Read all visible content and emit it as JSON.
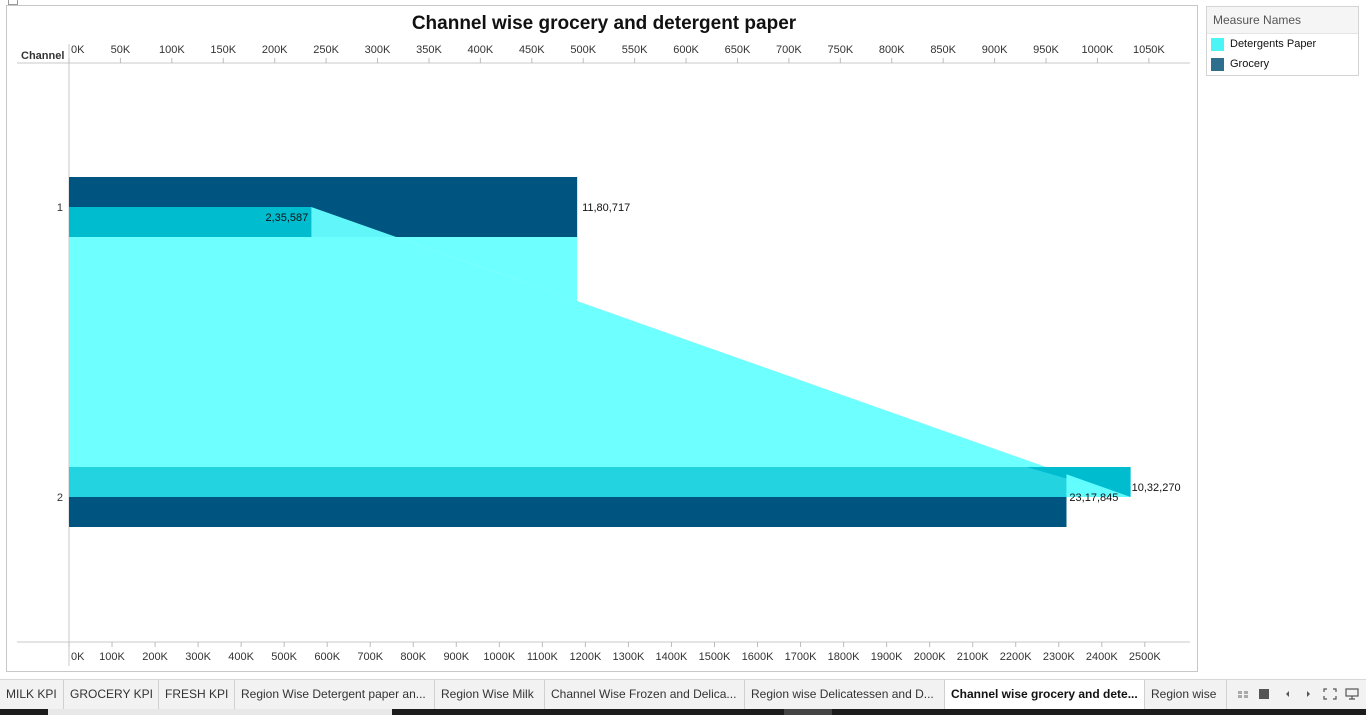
{
  "chart_data": {
    "type": "bar",
    "title": "Channel wise grocery and detergent paper",
    "row_header": "Channel",
    "categories": [
      "1",
      "2"
    ],
    "series": [
      {
        "name": "Grocery",
        "values": [
          1180717,
          2317845
        ],
        "color": "#005580",
        "axis": "bottom"
      },
      {
        "name": "Detergents Paper",
        "values": [
          235587,
          1032270
        ],
        "color": "#00bccf",
        "axis": "top"
      }
    ],
    "data_labels": {
      "grocery": [
        "11,80,717",
        "23,17,845"
      ],
      "detergents": [
        "2,35,587",
        "10,32,270"
      ]
    },
    "top_axis": {
      "range": [
        0,
        1090000
      ],
      "ticks": [
        0,
        50000,
        100000,
        150000,
        200000,
        250000,
        300000,
        350000,
        400000,
        450000,
        500000,
        550000,
        600000,
        650000,
        700000,
        750000,
        800000,
        850000,
        900000,
        950000,
        1000000,
        1050000
      ],
      "tick_labels": [
        "0K",
        "50K",
        "100K",
        "150K",
        "200K",
        "250K",
        "300K",
        "350K",
        "400K",
        "450K",
        "500K",
        "550K",
        "600K",
        "650K",
        "700K",
        "750K",
        "800K",
        "850K",
        "900K",
        "950K",
        "1000K",
        "1050K"
      ]
    },
    "bottom_axis": {
      "range": [
        0,
        2605000
      ],
      "ticks": [
        0,
        100000,
        200000,
        300000,
        400000,
        500000,
        600000,
        700000,
        800000,
        900000,
        1000000,
        1100000,
        1200000,
        1300000,
        1400000,
        1500000,
        1600000,
        1700000,
        1800000,
        1900000,
        2000000,
        2100000,
        2200000,
        2300000,
        2400000,
        2500000
      ],
      "tick_labels": [
        "0K",
        "100K",
        "200K",
        "300K",
        "400K",
        "500K",
        "600K",
        "700K",
        "800K",
        "900K",
        "1000K",
        "1100K",
        "1200K",
        "1300K",
        "1400K",
        "1500K",
        "1600K",
        "1700K",
        "1800K",
        "1900K",
        "2000K",
        "2100K",
        "2200K",
        "2300K",
        "2400K",
        "2500K"
      ]
    },
    "area_color": "#66ffff",
    "grid": false
  },
  "legend": {
    "title": "Measure Names",
    "items": [
      {
        "label": "Detergents Paper",
        "color": "#4cf5f5"
      },
      {
        "label": "Grocery",
        "color": "#2e6f8e"
      }
    ]
  },
  "tabs": [
    {
      "label": "MILK KPI",
      "active": false
    },
    {
      "label": "GROCERY KPI",
      "active": false
    },
    {
      "label": "FRESH KPI",
      "active": false
    },
    {
      "label": "Region Wise Detergent paper an...",
      "active": false
    },
    {
      "label": "Region Wise Milk",
      "active": false
    },
    {
      "label": "Channel Wise Frozen and Delica...",
      "active": false
    },
    {
      "label": "Region wise Delicatessen and D...",
      "active": false
    },
    {
      "label": "Channel wise grocery and dete...",
      "active": true
    },
    {
      "label": "Region wise",
      "active": false
    }
  ],
  "controls": {
    "grid_view_icon": "grid-view-icon",
    "filmstrip_icon": "filmstrip-icon",
    "prev_icon": "prev-sheet-icon",
    "next_icon": "next-sheet-icon",
    "fullscreen_icon": "fullscreen-icon",
    "presentation_icon": "presentation-icon"
  }
}
